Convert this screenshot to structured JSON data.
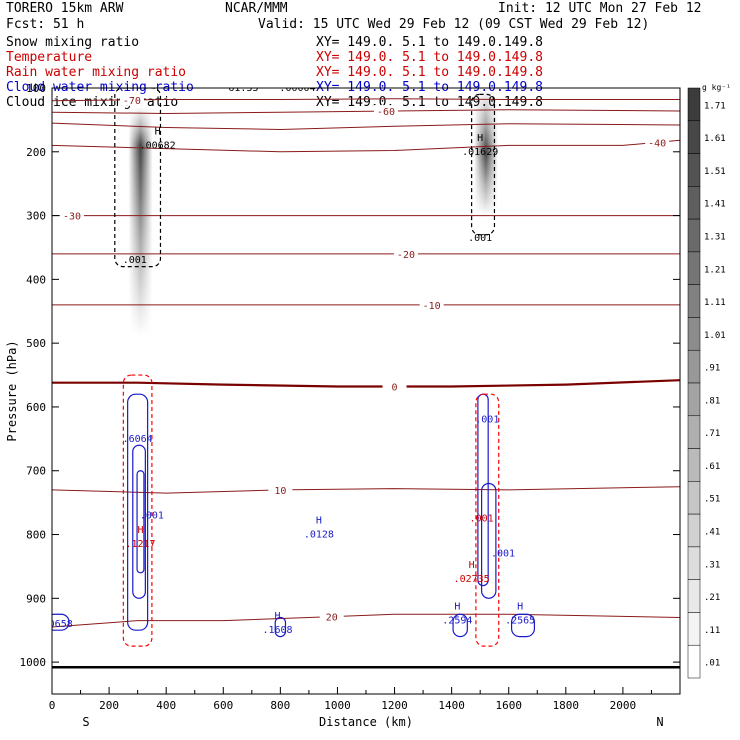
{
  "header": {
    "model": "TORERO  15km ARW",
    "org": "NCAR/MMM",
    "init": "Init: 12 UTC Mon 27 Feb 12",
    "fcst": "Fcst:   51 h",
    "valid": "Valid: 15 UTC Wed 29 Feb 12 (09 CST Wed 29 Feb 12)"
  },
  "fields": [
    {
      "name": "Snow mixing ratio",
      "xy": "XY= 149.0.  5.1 to 149.0.149.8",
      "color": "#000000"
    },
    {
      "name": "Temperature",
      "xy": "XY= 149.0.  5.1 to 149.0.149.8",
      "color": "#cc0000"
    },
    {
      "name": "Rain water mixing ratio",
      "xy": "XY= 149.0.  5.1 to 149.0.149.8",
      "color": "#cc0000"
    },
    {
      "name": "Cloud water mixing ratio",
      "xy": "XY= 149.0.  5.1 to 149.0.149.8",
      "color": "#0000cc"
    },
    {
      "name": "Cloud ice mixing ratio",
      "xy": "XY= 149.0.  5.1 to 149.0.149.8",
      "color": "#000000"
    }
  ],
  "colors": {
    "temperature": "#8b1a1a",
    "freezing": "#7a0000",
    "rain": "#ff0000",
    "cloud_water": "#1a1acc",
    "ice": "#000000",
    "snow_shade": "#404040"
  },
  "chart_data": {
    "type": "heatmap",
    "xlabel": "Distance (km)",
    "ylabel": "Pressure (hPa)",
    "x_range": [
      0,
      2200
    ],
    "y_range": [
      1050,
      100
    ],
    "x_ticks": [
      0,
      200,
      400,
      600,
      800,
      1000,
      1200,
      1400,
      1600,
      1800,
      2000
    ],
    "y_ticks": [
      1000,
      900,
      800,
      700,
      600,
      500,
      400,
      300,
      200,
      100
    ],
    "x_end_labels": {
      "left": "S",
      "right": "N"
    },
    "colorbar": {
      "unit": "g kg⁻¹",
      "levels": [
        "1.71",
        "1.61",
        "1.51",
        "1.41",
        "1.31",
        "1.21",
        "1.11",
        "1.01",
        ".91",
        ".81",
        ".71",
        ".61",
        ".51",
        ".41",
        ".31",
        ".21",
        ".11",
        ".01"
      ]
    },
    "snow_columns": [
      {
        "x_center": 310,
        "p_top": 130,
        "p_bottom": 490,
        "p_max": 190,
        "max_value": 1.4
      },
      {
        "x_center": 1520,
        "p_top": 100,
        "p_bottom": 300,
        "p_max": 200,
        "max_value": 1.7
      }
    ],
    "temperature_isotherms": [
      {
        "value": -70,
        "label": "-70",
        "label_x": 280,
        "points": [
          [
            0,
            120
          ],
          [
            400,
            118
          ],
          [
            800,
            118
          ],
          [
            1200,
            117
          ],
          [
            1600,
            118
          ],
          [
            2200,
            118
          ]
        ]
      },
      {
        "value": -60,
        "label": "-60",
        "label_x": 1170,
        "points": [
          [
            0,
            138
          ],
          [
            400,
            140
          ],
          [
            800,
            138
          ],
          [
            1200,
            136
          ],
          [
            1600,
            134
          ],
          [
            2200,
            136
          ]
        ]
      },
      {
        "value": -50,
        "label": "",
        "label_x": 0,
        "points": [
          [
            0,
            155
          ],
          [
            400,
            162
          ],
          [
            800,
            165
          ],
          [
            1200,
            160
          ],
          [
            1600,
            156
          ],
          [
            2200,
            158
          ]
        ]
      },
      {
        "value": -40,
        "label": "-40",
        "label_x": 2120,
        "points": [
          [
            0,
            190
          ],
          [
            400,
            195
          ],
          [
            800,
            200
          ],
          [
            1200,
            198
          ],
          [
            1600,
            190
          ],
          [
            2000,
            190
          ],
          [
            2200,
            182
          ]
        ]
      },
      {
        "value": -30,
        "label": "-30",
        "label_x": 70,
        "points": [
          [
            0,
            300
          ],
          [
            400,
            300
          ],
          [
            800,
            300
          ],
          [
            1200,
            300
          ],
          [
            1600,
            300
          ],
          [
            2200,
            300
          ]
        ]
      },
      {
        "value": -20,
        "label": "-20",
        "label_x": 1240,
        "points": [
          [
            0,
            360
          ],
          [
            400,
            360
          ],
          [
            800,
            360
          ],
          [
            1200,
            360
          ],
          [
            1600,
            360
          ],
          [
            2200,
            360
          ]
        ]
      },
      {
        "value": -10,
        "label": "-10",
        "label_x": 1330,
        "points": [
          [
            0,
            440
          ],
          [
            400,
            440
          ],
          [
            800,
            440
          ],
          [
            1200,
            440
          ],
          [
            1600,
            440
          ],
          [
            2200,
            440
          ]
        ]
      },
      {
        "value": 0,
        "label": "0",
        "label_x": 1200,
        "points": [
          [
            0,
            562
          ],
          [
            300,
            562
          ],
          [
            600,
            565
          ],
          [
            1000,
            568
          ],
          [
            1400,
            568
          ],
          [
            1800,
            565
          ],
          [
            2200,
            558
          ]
        ]
      },
      {
        "value": 10,
        "label": "10",
        "label_x": 800,
        "points": [
          [
            0,
            730
          ],
          [
            400,
            735
          ],
          [
            800,
            730
          ],
          [
            1200,
            728
          ],
          [
            1600,
            730
          ],
          [
            2200,
            725
          ]
        ]
      },
      {
        "value": 20,
        "label": "20",
        "label_x": 980,
        "points": [
          [
            0,
            945
          ],
          [
            300,
            935
          ],
          [
            600,
            935
          ],
          [
            900,
            930
          ],
          [
            1200,
            925
          ],
          [
            1600,
            925
          ],
          [
            2200,
            930
          ]
        ]
      }
    ],
    "annotations": [
      {
        "kind": "max",
        "label": ".00682",
        "x": 370,
        "p": 190,
        "color": "#000000"
      },
      {
        "kind": "max",
        "label": ".01629",
        "x": 1500,
        "p": 200,
        "color": "#000000"
      },
      {
        "kind": "label",
        "label": ".001",
        "x": 290,
        "p": 370,
        "color": "#000000"
      },
      {
        "kind": "label",
        "label": ".001",
        "x": 1500,
        "p": 335,
        "color": "#000000"
      },
      {
        "kind": "label",
        "label": ".6064",
        "x": 300,
        "p": 650,
        "color": "#1a1acc"
      },
      {
        "kind": "label",
        "label": ".001",
        "x": 1525,
        "p": 620,
        "color": "#1a1acc"
      },
      {
        "kind": "label",
        "label": ".001",
        "x": 350,
        "p": 770,
        "color": "#1a1acc"
      },
      {
        "kind": "max",
        "label": ".0128",
        "x": 935,
        "p": 800,
        "color": "#1a1acc"
      },
      {
        "kind": "max",
        "label": ".1217",
        "x": 310,
        "p": 815,
        "color": "#cc0000"
      },
      {
        "kind": "label",
        "label": ".001",
        "x": 1505,
        "p": 775,
        "color": "#cc0000"
      },
      {
        "kind": "label",
        "label": ".001",
        "x": 1580,
        "p": 830,
        "color": "#1a1acc"
      },
      {
        "kind": "max",
        "label": ".02735",
        "x": 1470,
        "p": 870,
        "color": "#cc0000"
      },
      {
        "kind": "max",
        "label": ".2594",
        "x": 1420,
        "p": 935,
        "color": "#1a1acc"
      },
      {
        "kind": "max",
        "label": ".2565",
        "x": 1640,
        "p": 935,
        "color": "#1a1acc"
      },
      {
        "kind": "label",
        "label": ".0658",
        "x": 20,
        "p": 940,
        "color": "#1a1acc"
      },
      {
        "kind": "max",
        "label": ".1608",
        "x": 790,
        "p": 950,
        "color": "#1a1acc"
      },
      {
        "kind": "label",
        "label": "-61.33",
        "x": 660,
        "p": 100,
        "color": "#000000"
      },
      {
        "kind": "label",
        "label": ".00004",
        "x": 860,
        "p": 100,
        "color": "#000000"
      }
    ]
  }
}
